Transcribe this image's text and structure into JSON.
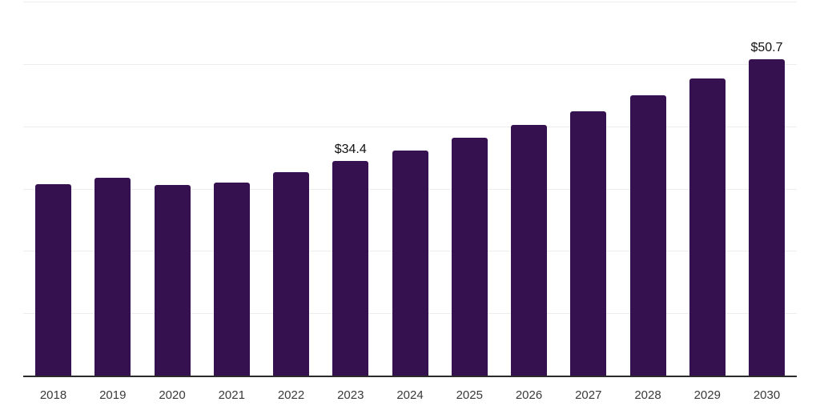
{
  "chart_data": {
    "type": "bar",
    "categories": [
      "2018",
      "2019",
      "2020",
      "2021",
      "2022",
      "2023",
      "2024",
      "2025",
      "2026",
      "2027",
      "2028",
      "2029",
      "2030"
    ],
    "values": [
      30.7,
      31.8,
      30.6,
      31.0,
      32.7,
      34.4,
      36.1,
      38.1,
      40.2,
      42.4,
      45.0,
      47.7,
      50.7
    ],
    "value_labels": [
      {
        "category": "2023",
        "text": "$34.4"
      },
      {
        "category": "2030",
        "text": "$50.7"
      }
    ],
    "ylim": [
      0,
      60
    ],
    "gridline_step": 10,
    "grid": true,
    "legend": false,
    "y_axis_tick_labels_visible": false,
    "colors": {
      "bar": "#351150",
      "axis_line": "#2b2b2b",
      "gridline": "#ededed",
      "value_label": "#111111",
      "tick_label": "#3a3a3a",
      "background": "#ffffff"
    }
  }
}
